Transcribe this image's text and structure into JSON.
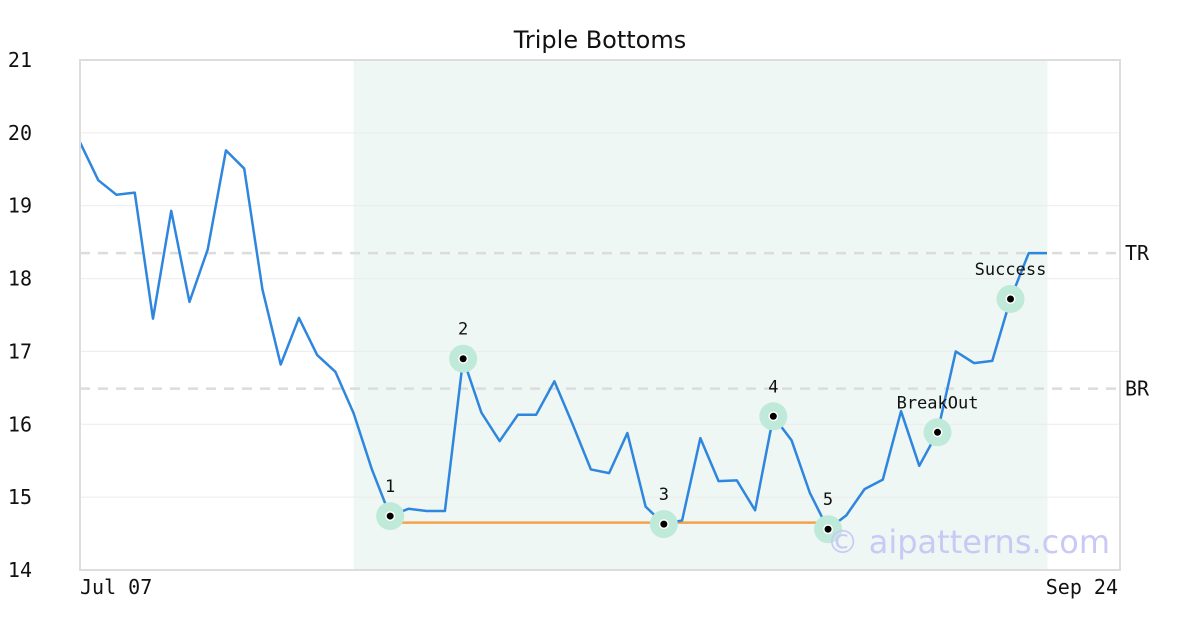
{
  "chart_data": {
    "type": "line",
    "title": "Triple Bottoms",
    "xlabel": "",
    "ylabel": "",
    "ylim": [
      14,
      21
    ],
    "yticks": [
      14,
      15,
      16,
      17,
      18,
      19,
      20,
      21
    ],
    "x_tick_labels": {
      "first": "Jul 07",
      "last": "Sep 24"
    },
    "grid": true,
    "series": [
      {
        "color": "#2e86de",
        "values": [
          19.87,
          19.35,
          19.15,
          19.18,
          17.45,
          18.93,
          17.68,
          18.4,
          19.76,
          19.51,
          17.85,
          16.82,
          17.46,
          16.95,
          16.72,
          16.15,
          15.38,
          14.74,
          14.84,
          14.81,
          14.81,
          16.9,
          16.16,
          15.77,
          16.13,
          16.13,
          16.59,
          16.0,
          15.38,
          15.33,
          15.88,
          14.87,
          14.63,
          14.68,
          15.81,
          15.22,
          15.23,
          14.82,
          16.11,
          15.78,
          15.06,
          14.56,
          14.75,
          15.11,
          15.24,
          16.18,
          15.43,
          15.89,
          17.0,
          16.84,
          16.87,
          17.72,
          18.35,
          18.35
        ]
      }
    ],
    "highlight_region": {
      "start_index": 15,
      "end_index": 53,
      "color": "#eef7f3"
    },
    "reference_lines": [
      {
        "label": "TR",
        "y": 18.35,
        "style": "dashed",
        "color": "#dcdcdc"
      },
      {
        "label": "BR",
        "y": 16.49,
        "style": "dashed",
        "color": "#dcdcdc"
      }
    ],
    "support_line": {
      "from_index": 17,
      "to_index": 41,
      "y": 14.65,
      "color": "#f4a24a"
    },
    "annotations": [
      {
        "label": "1",
        "index": 17,
        "y": 14.74,
        "label_pos": "above"
      },
      {
        "label": "2",
        "index": 21,
        "y": 16.9,
        "label_pos": "above"
      },
      {
        "label": "3",
        "index": 32,
        "y": 14.63,
        "label_pos": "above"
      },
      {
        "label": "4",
        "index": 38,
        "y": 16.11,
        "label_pos": "above"
      },
      {
        "label": "5",
        "index": 41,
        "y": 14.56,
        "label_pos": "above"
      },
      {
        "label": "BreakOut",
        "index": 47,
        "y": 15.89,
        "label_pos": "above"
      },
      {
        "label": "Success",
        "index": 51,
        "y": 17.72,
        "label_pos": "above"
      }
    ],
    "watermark": "© aipatterns.com"
  }
}
